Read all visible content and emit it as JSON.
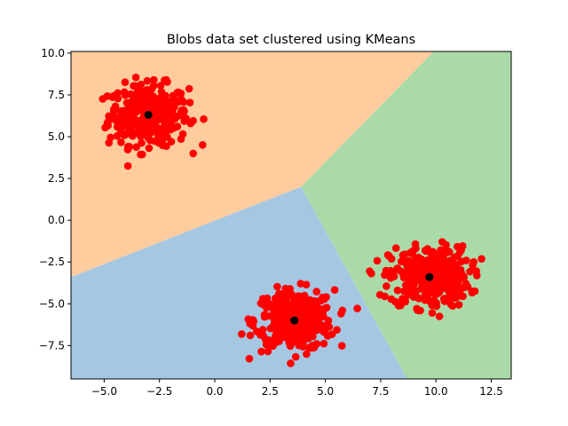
{
  "chart_data": {
    "type": "scatter",
    "title": "Blobs data set clustered using KMeans",
    "xlabel": "",
    "ylabel": "",
    "xlim": [
      -6.5,
      13.4
    ],
    "ylim": [
      -9.5,
      10.1
    ],
    "x_ticks": [
      -5.0,
      -2.5,
      0.0,
      2.5,
      5.0,
      7.5,
      10.0,
      12.5
    ],
    "x_tick_labels": [
      "−5.0",
      "−2.5",
      "0.0",
      "2.5",
      "5.0",
      "7.5",
      "10.0",
      "12.5"
    ],
    "y_ticks": [
      -7.5,
      -5.0,
      -2.5,
      0.0,
      2.5,
      5.0,
      7.5,
      10.0
    ],
    "y_tick_labels": [
      "−7.5",
      "−5.0",
      "−2.5",
      "0.0",
      "2.5",
      "5.0",
      "7.5",
      "10.0"
    ],
    "grid": false,
    "legend": "none",
    "regions": [
      {
        "cluster": 0,
        "color": "#ffcc9e",
        "polygon": [
          [
            -6.5,
            10.1
          ],
          [
            9.9,
            10.1
          ],
          [
            3.9,
            2.0
          ],
          [
            -6.5,
            -3.4
          ]
        ]
      },
      {
        "cluster": 1,
        "color": "#aadaa8",
        "polygon": [
          [
            9.9,
            10.1
          ],
          [
            13.4,
            10.1
          ],
          [
            13.4,
            -9.5
          ],
          [
            8.7,
            -9.5
          ],
          [
            3.9,
            2.0
          ]
        ]
      },
      {
        "cluster": 2,
        "color": "#a6c7e2",
        "polygon": [
          [
            -6.5,
            -3.4
          ],
          [
            3.9,
            2.0
          ],
          [
            8.7,
            -9.5
          ],
          [
            -6.5,
            -9.5
          ]
        ]
      }
    ],
    "point_color": "#ff0000",
    "center_color": "#000000",
    "blobs": [
      {
        "center": [
          -3.0,
          6.3
        ],
        "spread": 0.9,
        "count": 330,
        "x_range": [
          -5.4,
          -0.3
        ],
        "y_range": [
          3.2,
          9.3
        ]
      },
      {
        "center": [
          3.6,
          -6.0
        ],
        "spread": 0.9,
        "count": 330,
        "x_range": [
          1.1,
          6.7
        ],
        "y_range": [
          -8.6,
          -3.2
        ]
      },
      {
        "center": [
          9.7,
          -3.4
        ],
        "spread": 0.9,
        "count": 330,
        "x_range": [
          6.7,
          12.5
        ],
        "y_range": [
          -6.0,
          -0.8
        ]
      }
    ],
    "centers": [
      [
        -3.0,
        6.3
      ],
      [
        3.6,
        -6.0
      ],
      [
        9.7,
        -3.4
      ]
    ]
  }
}
